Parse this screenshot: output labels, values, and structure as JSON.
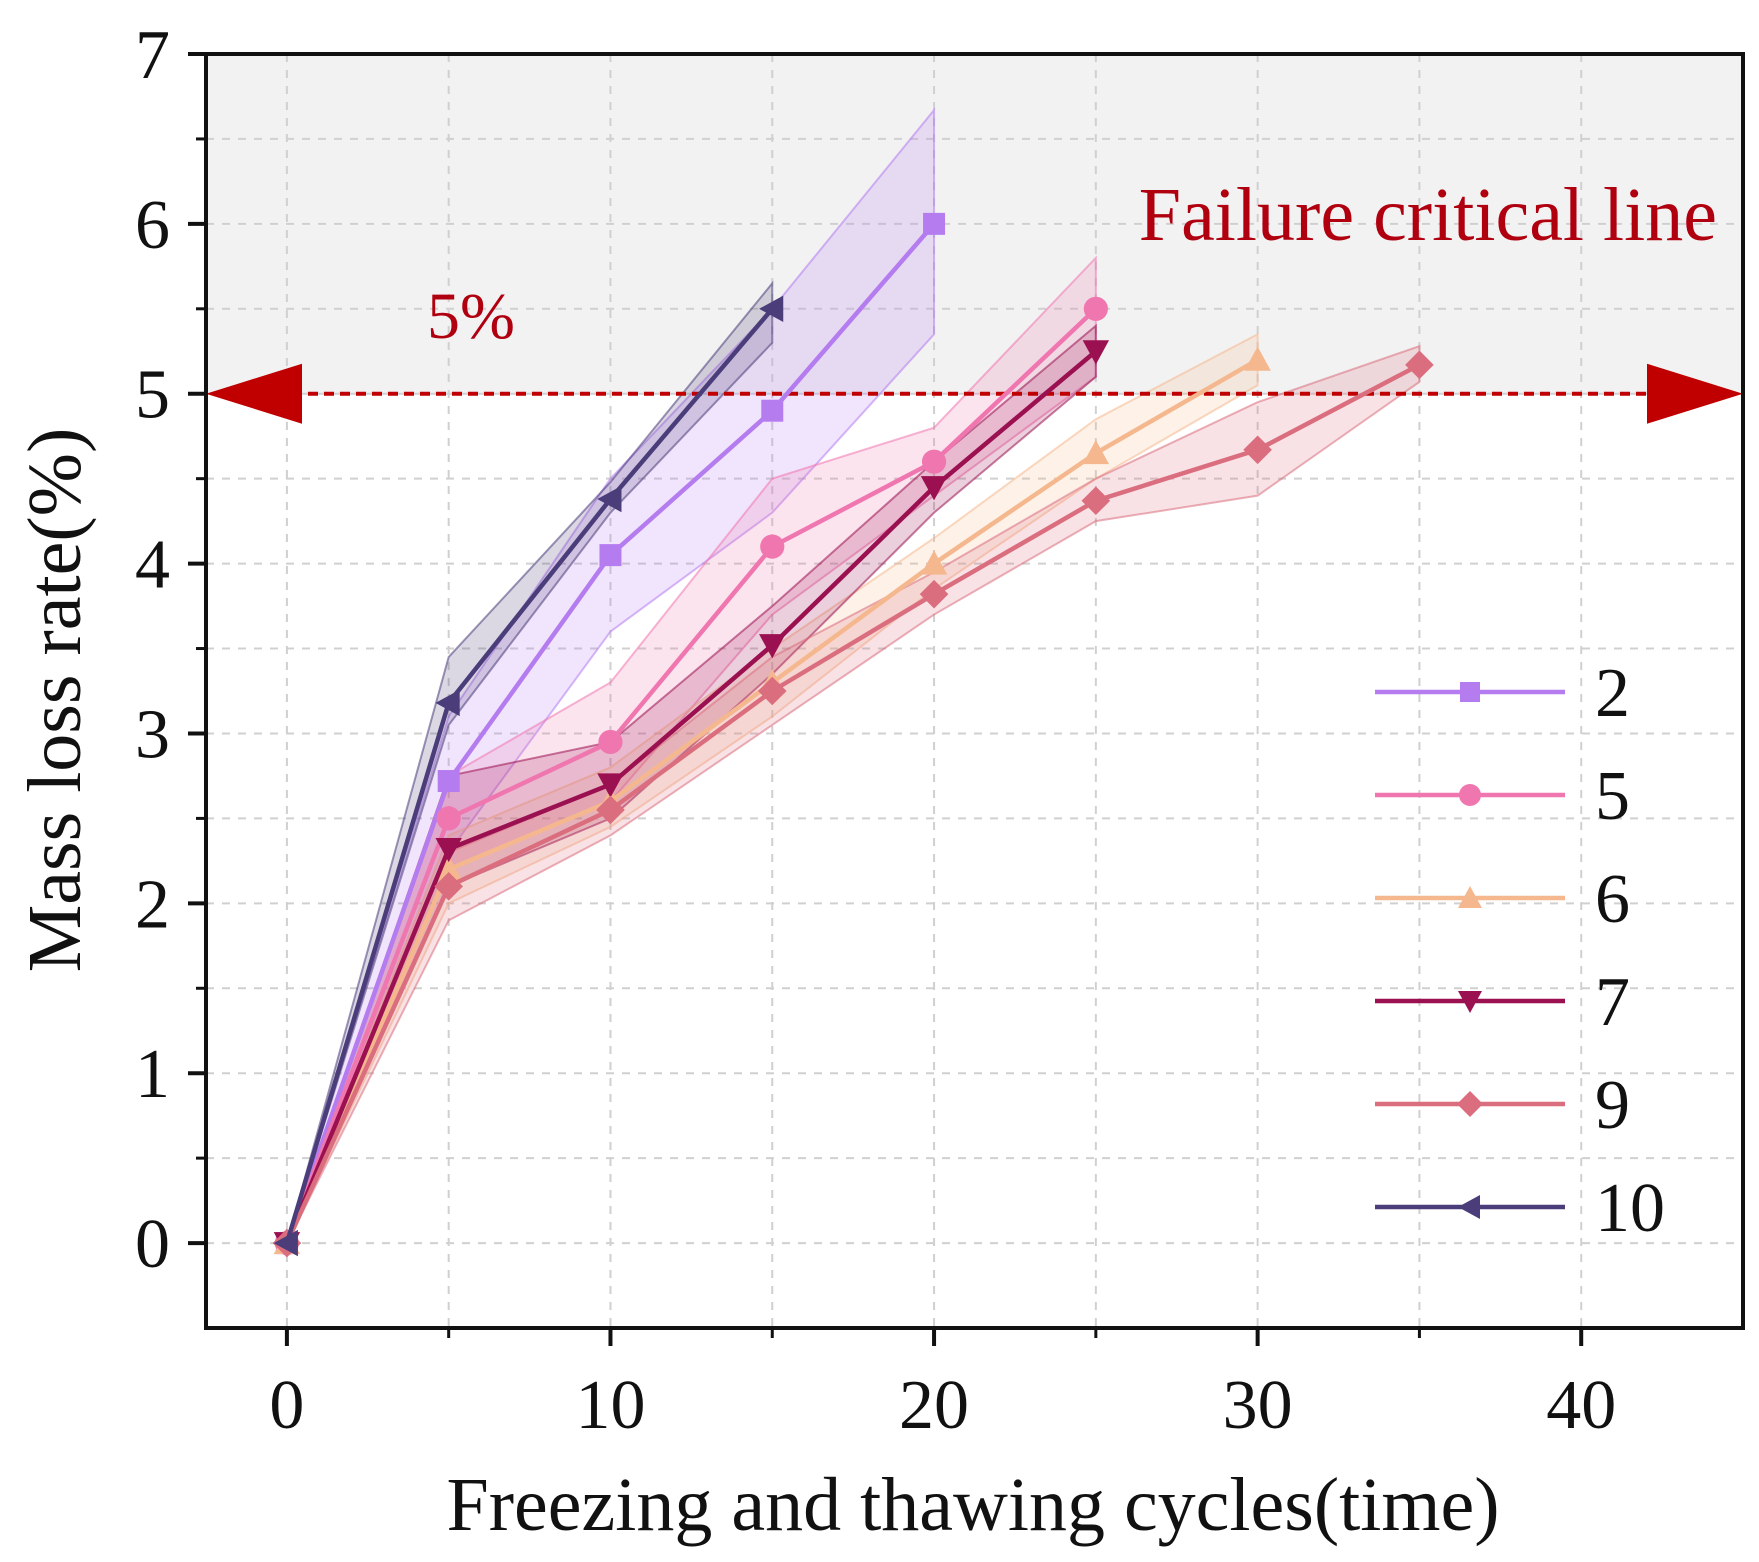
{
  "chart_data": {
    "type": "line",
    "title": "",
    "xlabel": "Freezing and thawing cycles(time)",
    "ylabel": "Mass loss rate(%)",
    "xlim": [
      -2.5,
      45
    ],
    "ylim": [
      -0.5,
      7
    ],
    "x_ticks": [
      "0",
      "10",
      "20",
      "30",
      "40"
    ],
    "y_ticks": [
      "0",
      "1",
      "2",
      "3",
      "4",
      "5",
      "6",
      "7"
    ],
    "grid": true,
    "legend_position": "bottom-right",
    "threshold": {
      "value": 5,
      "label": "5%",
      "annotation": "Failure critical line",
      "color": "#c00000",
      "region_color": "#f2f2f2"
    },
    "series": [
      {
        "name": "2",
        "color": "#b57cf0",
        "marker": "square",
        "x": [
          0,
          5,
          10,
          15,
          20
        ],
        "values": [
          0,
          2.72,
          4.05,
          4.9,
          6.0
        ],
        "band_lower": [
          0,
          2.3,
          3.6,
          4.3,
          5.35
        ],
        "band_upper": [
          0,
          3.1,
          4.5,
          5.5,
          6.67
        ]
      },
      {
        "name": "5",
        "color": "#f076b0",
        "marker": "circle",
        "x": [
          0,
          5,
          10,
          15,
          20,
          25
        ],
        "values": [
          0,
          2.5,
          2.95,
          4.1,
          4.6,
          5.5
        ],
        "band_lower": [
          0,
          2.2,
          2.6,
          3.7,
          4.4,
          5.1
        ],
        "band_upper": [
          0,
          2.75,
          3.3,
          4.5,
          4.8,
          5.8
        ]
      },
      {
        "name": "6",
        "color": "#f5b88e",
        "marker": "triangle-up",
        "x": [
          0,
          5,
          10,
          15,
          20,
          25,
          30
        ],
        "values": [
          0,
          2.2,
          2.6,
          3.3,
          4.0,
          4.65,
          5.2
        ],
        "band_lower": [
          0,
          2.0,
          2.45,
          3.1,
          3.85,
          4.5,
          5.05
        ],
        "band_upper": [
          0,
          2.4,
          2.8,
          3.5,
          4.15,
          4.85,
          5.35
        ]
      },
      {
        "name": "7",
        "color": "#9b1050",
        "marker": "triangle-down",
        "x": [
          0,
          5,
          10,
          15,
          20,
          25
        ],
        "values": [
          0,
          2.32,
          2.7,
          3.52,
          4.45,
          5.25
        ],
        "band_lower": [
          0,
          2.1,
          2.5,
          3.35,
          4.3,
          5.1
        ],
        "band_upper": [
          0,
          2.75,
          2.95,
          3.75,
          4.6,
          5.4
        ]
      },
      {
        "name": "9",
        "color": "#db6e7e",
        "marker": "diamond",
        "x": [
          0,
          5,
          10,
          15,
          20,
          25,
          30,
          35
        ],
        "values": [
          0,
          2.1,
          2.55,
          3.25,
          3.82,
          4.37,
          4.67,
          5.17
        ],
        "band_lower": [
          0,
          1.9,
          2.4,
          3.05,
          3.7,
          4.25,
          4.4,
          5.07
        ],
        "band_upper": [
          0,
          2.3,
          2.7,
          3.45,
          3.95,
          4.5,
          4.95,
          5.28
        ]
      },
      {
        "name": "10",
        "color": "#4a3d7a",
        "marker": "triangle-left",
        "x": [
          0,
          5,
          10,
          15
        ],
        "values": [
          0,
          3.18,
          4.38,
          5.5
        ],
        "band_lower": [
          0,
          3.05,
          4.3,
          5.3
        ],
        "band_upper": [
          0,
          3.45,
          4.48,
          5.65
        ]
      }
    ]
  }
}
